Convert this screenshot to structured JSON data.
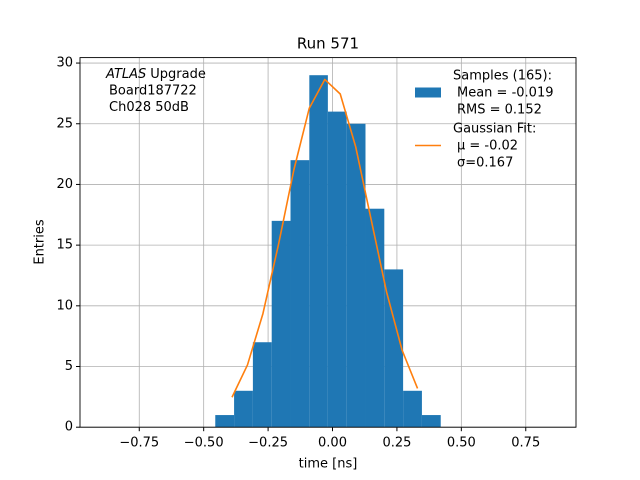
{
  "chart_data": {
    "type": "histogram",
    "title": "Run 571",
    "xlabel": "time [ns]",
    "ylabel": "Entries",
    "xlim": [
      -0.98,
      0.945
    ],
    "ylim": [
      0,
      30.45
    ],
    "xticks": [
      {
        "value": -0.75,
        "label": "−0.75"
      },
      {
        "value": -0.5,
        "label": "−0.50"
      },
      {
        "value": -0.25,
        "label": "−0.25"
      },
      {
        "value": 0,
        "label": "0.00"
      },
      {
        "value": 0.25,
        "label": "0.25"
      },
      {
        "value": 0.5,
        "label": "0.50"
      },
      {
        "value": 0.75,
        "label": "0.75"
      }
    ],
    "yticks": [
      0,
      5,
      10,
      15,
      20,
      25,
      30
    ],
    "grid": true,
    "legend": "upper right",
    "bins": [
      -0.455,
      -0.382,
      -0.309,
      -0.236,
      -0.163,
      -0.09,
      -0.018,
      0.055,
      0.128,
      0.201,
      0.274,
      0.347,
      0.42
    ],
    "series": [
      {
        "name": "Samples (165):",
        "details": [
          "Mean = -0.019",
          "RMS = 0.152"
        ],
        "color": "#1f77b4",
        "values": [
          1,
          3,
          7,
          17,
          22,
          29,
          26,
          25,
          18,
          13,
          3,
          1
        ]
      }
    ],
    "fit": {
      "type": "line",
      "name": "Gaussian Fit:",
      "details": [
        "μ = -0.02",
        "σ=0.167"
      ],
      "color": "#ff7f0e",
      "x": [
        -0.39,
        -0.33,
        -0.27,
        -0.21,
        -0.15,
        -0.09,
        -0.03,
        0.03,
        0.09,
        0.15,
        0.21,
        0.27,
        0.33
      ],
      "values": [
        2.47,
        5.13,
        9.36,
        15.02,
        21.2,
        26.29,
        28.65,
        27.45,
        23.1,
        17.1,
        11.12,
        6.35,
        3.19
      ]
    },
    "annotation": {
      "emphasis": "ATLAS",
      "lines": [
        "Upgrade",
        "Board187722",
        "Ch028 50dB"
      ]
    }
  }
}
